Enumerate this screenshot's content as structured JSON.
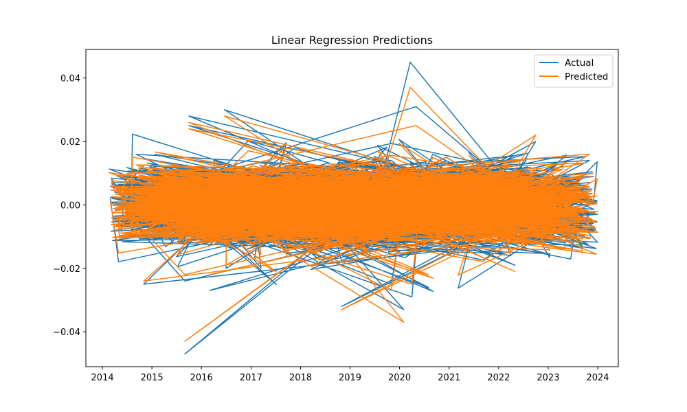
{
  "chart_data": {
    "type": "line",
    "title": "Linear Regression Predictions",
    "xlabel": "",
    "ylabel": "",
    "x_ticks": [
      "2014",
      "2015",
      "2016",
      "2017",
      "2018",
      "2019",
      "2020",
      "2021",
      "2022",
      "2023",
      "2024"
    ],
    "y_ticks": [
      "−0.04",
      "−0.02",
      "0.00",
      "0.02",
      "0.04"
    ],
    "xlim": [
      "2013-09-01",
      "2024-06-01"
    ],
    "ylim": [
      -0.051,
      0.049
    ],
    "grid": false,
    "legend_position": "top-right",
    "series_note": "Both series are time-ordered-by-index but x (dates) is shuffled, producing a dense scribble of returns around 0.",
    "series": [
      {
        "name": "Actual",
        "color": "#1f77b4",
        "points": [
          [
            "2014-03-01",
            0.002
          ],
          [
            "2017-05-01",
            -0.006
          ],
          [
            "2015-08-20",
            0.006
          ],
          [
            "2019-04-10",
            -0.004
          ],
          [
            "2016-01-15",
            0.011
          ],
          [
            "2021-06-01",
            -0.012
          ],
          [
            "2015-09-01",
            -0.047
          ],
          [
            "2015-10-01",
            0.025
          ],
          [
            "2020-03-20",
            0.045
          ],
          [
            "2019-08-01",
            -0.004
          ],
          [
            "2016-06-20",
            0.03
          ],
          [
            "2018-05-01",
            0.004
          ],
          [
            "2020-06-01",
            -0.008
          ],
          [
            "2015-10-01",
            0.028
          ],
          [
            "2016-02-01",
            -0.002
          ],
          [
            "2022-10-01",
            0.02
          ],
          [
            "2019-11-01",
            -0.025
          ],
          [
            "2014-11-01",
            -0.025
          ],
          [
            "2016-03-01",
            -0.027
          ],
          [
            "2016-07-01",
            -0.02
          ],
          [
            "2017-04-01",
            0.012
          ],
          [
            "2018-11-01",
            -0.032
          ],
          [
            "2020-02-01",
            -0.033
          ],
          [
            "2020-05-01",
            0.031
          ],
          [
            "2020-08-01",
            -0.026
          ],
          [
            "2015-09-01",
            -0.024
          ],
          [
            "2020-04-01",
            -0.029
          ],
          [
            "2022-05-01",
            -0.019
          ],
          [
            "2023-05-01",
            -0.012
          ],
          [
            "2023-12-01",
            0.009
          ],
          [
            "2017-01-01",
            0.008
          ],
          [
            "2018-03-01",
            -0.009
          ],
          [
            "2021-09-01",
            0.01
          ],
          [
            "2014-06-01",
            -0.01
          ],
          [
            "2019-02-01",
            0.014
          ],
          [
            "2021-01-01",
            -0.016
          ],
          [
            "2016-10-01",
            0.006
          ],
          [
            "2022-04-01",
            -0.016
          ],
          [
            "2023-11-01",
            0.014
          ],
          [
            "2017-08-01",
            -0.012
          ],
          [
            "2018-08-01",
            0.01
          ],
          [
            "2015-04-01",
            0.009
          ],
          [
            "2020-11-01",
            -0.009
          ],
          [
            "2019-06-01",
            0.006
          ],
          [
            "2022-11-01",
            -0.011
          ],
          [
            "2016-04-01",
            0.014
          ],
          [
            "2018-01-01",
            -0.005
          ],
          [
            "2021-11-01",
            0.012
          ],
          [
            "2014-09-01",
            0.008
          ],
          [
            "2017-10-01",
            -0.01
          ],
          [
            "2020-09-01",
            0.016
          ],
          [
            "2023-02-01",
            -0.006
          ],
          [
            "2015-06-01",
            -0.012
          ],
          [
            "2019-10-01",
            0.012
          ],
          [
            "2016-12-01",
            -0.014
          ],
          [
            "2022-02-01",
            0.008
          ],
          [
            "2018-10-01",
            -0.006
          ],
          [
            "2021-04-01",
            0.004
          ],
          [
            "2024-01-01",
            -0.003
          ],
          [
            "2017-02-01",
            0.003
          ]
        ]
      },
      {
        "name": "Predicted",
        "color": "#ff7f0e",
        "points": [
          [
            "2014-03-01",
            0.001
          ],
          [
            "2017-05-01",
            -0.005
          ],
          [
            "2015-08-20",
            0.005
          ],
          [
            "2019-04-10",
            -0.003
          ],
          [
            "2016-01-15",
            0.01
          ],
          [
            "2021-06-01",
            -0.011
          ],
          [
            "2015-09-01",
            -0.043
          ],
          [
            "2015-10-01",
            0.024
          ],
          [
            "2020-03-20",
            0.037
          ],
          [
            "2019-08-01",
            -0.003
          ],
          [
            "2016-06-20",
            0.028
          ],
          [
            "2018-05-01",
            0.005
          ],
          [
            "2020-06-01",
            -0.007
          ],
          [
            "2015-10-01",
            0.026
          ],
          [
            "2016-02-01",
            -0.001
          ],
          [
            "2022-10-01",
            0.022
          ],
          [
            "2019-11-01",
            -0.027
          ],
          [
            "2014-11-01",
            -0.024
          ],
          [
            "2016-03-01",
            -0.022
          ],
          [
            "2016-07-01",
            -0.019
          ],
          [
            "2017-04-01",
            0.011
          ],
          [
            "2018-11-01",
            -0.033
          ],
          [
            "2020-02-01",
            -0.037
          ],
          [
            "2020-05-01",
            0.025
          ],
          [
            "2020-08-01",
            -0.022
          ],
          [
            "2015-09-01",
            -0.022
          ],
          [
            "2020-04-01",
            -0.025
          ],
          [
            "2022-05-01",
            -0.021
          ],
          [
            "2023-05-01",
            -0.014
          ],
          [
            "2023-12-01",
            0.01
          ],
          [
            "2017-01-01",
            0.009
          ],
          [
            "2018-03-01",
            -0.008
          ],
          [
            "2021-09-01",
            0.011
          ],
          [
            "2014-06-01",
            -0.009
          ],
          [
            "2019-02-01",
            0.013
          ],
          [
            "2021-01-01",
            -0.015
          ],
          [
            "2016-10-01",
            0.007
          ],
          [
            "2022-04-01",
            -0.015
          ],
          [
            "2023-11-01",
            0.016
          ],
          [
            "2017-08-01",
            -0.011
          ],
          [
            "2018-08-01",
            0.011
          ],
          [
            "2015-04-01",
            0.01
          ],
          [
            "2020-11-01",
            -0.01
          ],
          [
            "2019-06-01",
            0.007
          ],
          [
            "2022-11-01",
            -0.012
          ],
          [
            "2016-04-01",
            0.013
          ],
          [
            "2018-01-01",
            -0.004
          ],
          [
            "2021-11-01",
            0.013
          ],
          [
            "2014-09-01",
            0.007
          ],
          [
            "2017-10-01",
            -0.009
          ],
          [
            "2020-09-01",
            0.015
          ],
          [
            "2023-02-01",
            -0.007
          ],
          [
            "2015-06-01",
            -0.011
          ],
          [
            "2019-10-01",
            0.013
          ],
          [
            "2016-12-01",
            -0.013
          ],
          [
            "2022-02-01",
            0.009
          ],
          [
            "2018-10-01",
            -0.005
          ],
          [
            "2021-04-01",
            0.005
          ],
          [
            "2024-01-01",
            -0.002
          ],
          [
            "2017-02-01",
            0.004
          ]
        ]
      }
    ]
  }
}
